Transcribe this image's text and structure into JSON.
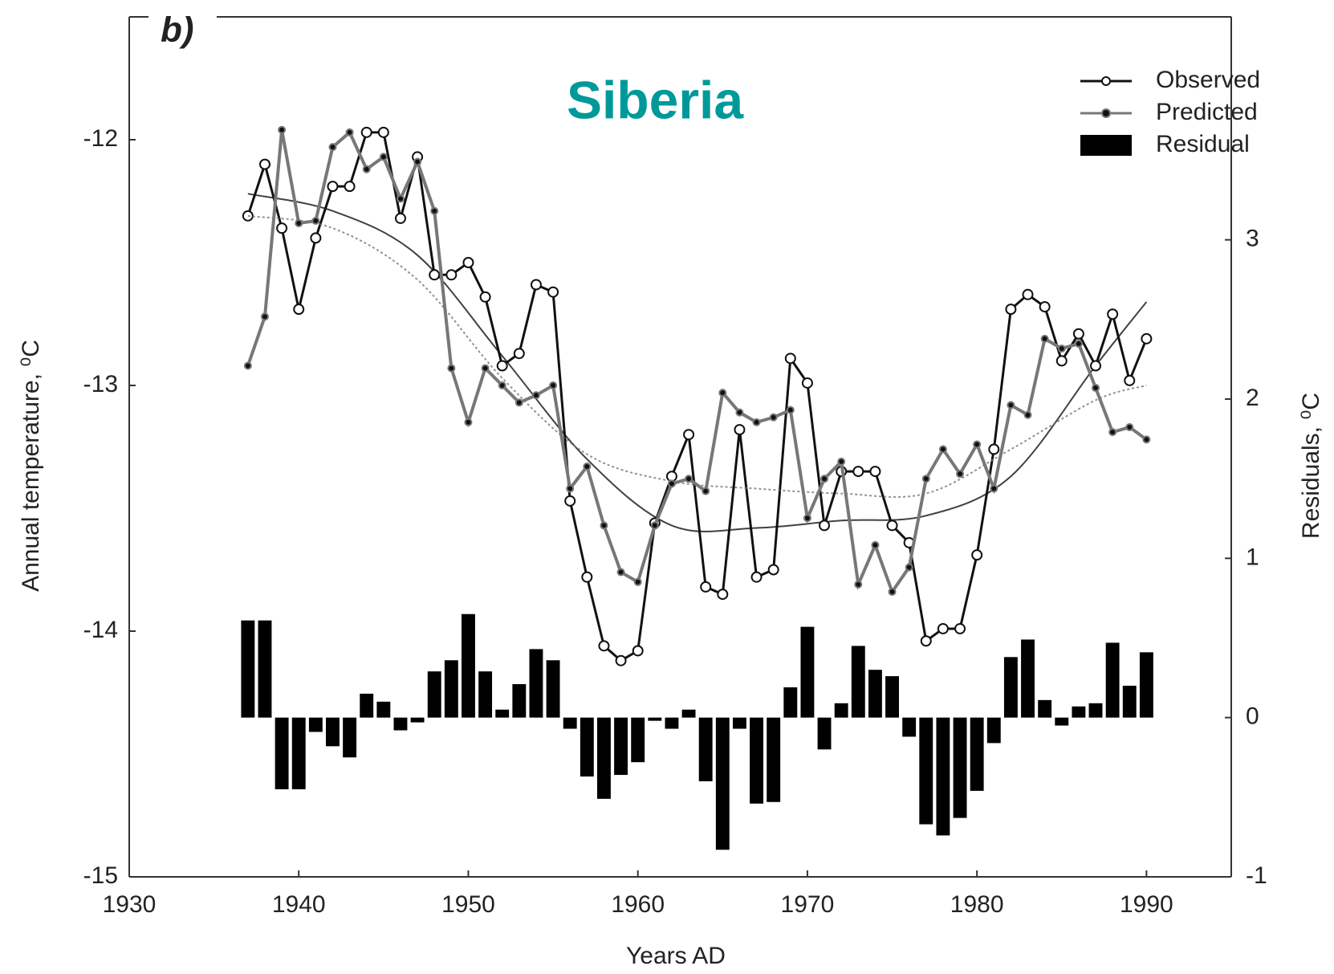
{
  "chart_data": {
    "type": "line",
    "panel_label": "b)",
    "title": "Siberia",
    "title_color": "#009999",
    "x_label": "Years AD",
    "y_label": "Annual temperature, ⁰C",
    "y2_label": "Residuals, ⁰C",
    "xlim": [
      1930,
      1995
    ],
    "xticks": [
      1930,
      1940,
      1950,
      1960,
      1970,
      1980,
      1990
    ],
    "ylim": [
      -15,
      -11.5
    ],
    "yticks": [
      -15,
      -14,
      -13,
      -12
    ],
    "y2lim": [
      -1,
      4.4
    ],
    "y2ticks": [
      -1,
      0,
      1,
      2,
      3
    ],
    "legend": "top-right",
    "x": [
      1937,
      1938,
      1939,
      1940,
      1941,
      1942,
      1943,
      1944,
      1945,
      1946,
      1947,
      1948,
      1949,
      1950,
      1951,
      1952,
      1953,
      1954,
      1955,
      1956,
      1957,
      1958,
      1959,
      1960,
      1961,
      1962,
      1963,
      1964,
      1965,
      1966,
      1967,
      1968,
      1969,
      1970,
      1971,
      1972,
      1973,
      1974,
      1975,
      1976,
      1977,
      1978,
      1979,
      1980,
      1981,
      1982,
      1983,
      1984,
      1985,
      1986,
      1987,
      1988,
      1989,
      1990
    ],
    "trend_x": [
      1937,
      1942,
      1947,
      1952,
      1957,
      1962,
      1967,
      1972,
      1977,
      1982,
      1987,
      1990
    ],
    "series": [
      {
        "name": "Observed",
        "type": "line",
        "color": "#111111",
        "marker": "open",
        "values": [
          -12.31,
          -12.1,
          -12.36,
          -12.69,
          -12.4,
          -12.19,
          -12.19,
          -11.97,
          -11.97,
          -12.32,
          -12.07,
          -12.55,
          -12.55,
          -12.5,
          -12.64,
          -12.92,
          -12.87,
          -12.59,
          -12.62,
          -13.47,
          -13.78,
          -14.06,
          -14.12,
          -14.08,
          -13.56,
          -13.37,
          -13.2,
          -13.82,
          -13.85,
          -13.18,
          -13.78,
          -13.75,
          -12.89,
          -12.99,
          -13.57,
          -13.35,
          -13.35,
          -13.35,
          -13.57,
          -13.64,
          -14.04,
          -13.99,
          -13.99,
          -13.69,
          -13.26,
          -12.69,
          -12.63,
          -12.68,
          -12.9,
          -12.79,
          -12.92,
          -12.71,
          -12.98,
          -12.81
        ],
        "trend": [
          -12.22,
          -12.29,
          -12.47,
          -12.88,
          -13.3,
          -13.57,
          -13.58,
          -13.55,
          -13.53,
          -13.37,
          -12.92,
          -12.66
        ]
      },
      {
        "name": "Predicted",
        "type": "line",
        "color": "#777777",
        "marker": "filled",
        "values": [
          -12.92,
          -12.72,
          -11.96,
          -12.34,
          -12.33,
          -12.03,
          -11.97,
          -12.12,
          -12.07,
          -12.24,
          -12.09,
          -12.29,
          -12.93,
          -13.15,
          -12.93,
          -13.0,
          -13.07,
          -13.04,
          -13.0,
          -13.42,
          -13.33,
          -13.57,
          -13.76,
          -13.8,
          -13.57,
          -13.4,
          -13.38,
          -13.43,
          -13.03,
          -13.11,
          -13.15,
          -13.13,
          -13.1,
          -13.54,
          -13.38,
          -13.31,
          -13.81,
          -13.65,
          -13.84,
          -13.74,
          -13.38,
          -13.26,
          -13.36,
          -13.24,
          -13.42,
          -13.08,
          -13.12,
          -12.81,
          -12.85,
          -12.83,
          -13.01,
          -13.19,
          -13.17,
          -13.22
        ],
        "trend": [
          -12.31,
          -12.36,
          -12.57,
          -12.97,
          -13.28,
          -13.39,
          -13.42,
          -13.44,
          -13.44,
          -13.26,
          -13.06,
          -13.0
        ]
      },
      {
        "name": "Residual",
        "type": "bar",
        "axis": "y2",
        "color": "#000000",
        "values": [
          0.61,
          0.61,
          -0.45,
          -0.45,
          -0.09,
          -0.18,
          -0.25,
          0.15,
          0.1,
          -0.08,
          -0.03,
          0.29,
          0.36,
          0.65,
          0.29,
          0.05,
          0.21,
          0.43,
          0.36,
          -0.07,
          -0.37,
          -0.51,
          -0.36,
          -0.28,
          -0.02,
          -0.07,
          0.05,
          -0.4,
          -0.83,
          -0.07,
          -0.54,
          -0.53,
          0.19,
          0.57,
          -0.2,
          0.09,
          0.45,
          0.3,
          0.26,
          -0.12,
          -0.67,
          -0.74,
          -0.63,
          -0.46,
          -0.16,
          0.38,
          0.49,
          0.11,
          -0.05,
          0.07,
          0.09,
          0.47,
          0.2,
          0.41
        ]
      }
    ]
  }
}
